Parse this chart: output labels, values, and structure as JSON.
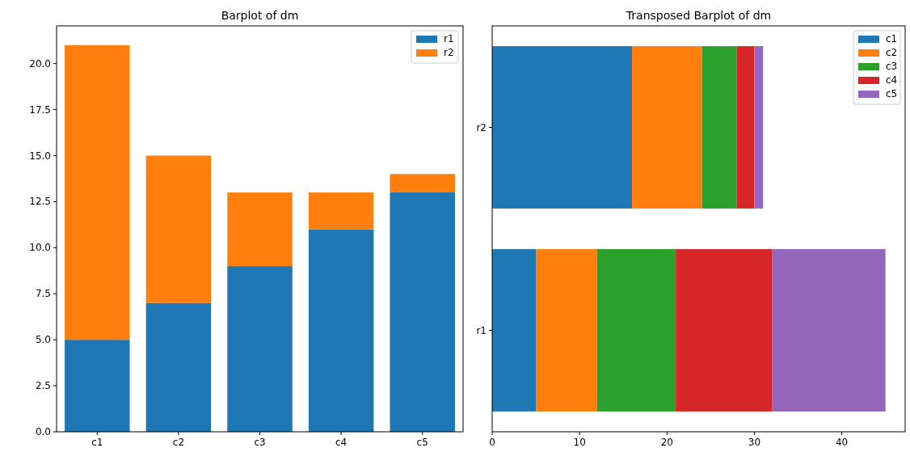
{
  "chart_data": [
    {
      "type": "bar",
      "title": "Barplot of dm",
      "categories": [
        "c1",
        "c2",
        "c3",
        "c4",
        "c5"
      ],
      "stacked": true,
      "legend": "top right",
      "ylim": [
        0,
        22.05
      ],
      "yticks": [
        {
          "value": 0,
          "label": "0.0"
        },
        {
          "value": 2.5,
          "label": "2.5"
        },
        {
          "value": 5,
          "label": "5.0"
        },
        {
          "value": 7.5,
          "label": "7.5"
        },
        {
          "value": 10,
          "label": "10.0"
        },
        {
          "value": 12.5,
          "label": "12.5"
        },
        {
          "value": 15,
          "label": "15.0"
        },
        {
          "value": 17.5,
          "label": "17.5"
        },
        {
          "value": 20,
          "label": "20.0"
        }
      ],
      "series": [
        {
          "name": "r1",
          "color": "#1f77b4",
          "values": [
            5,
            7,
            9,
            11,
            13
          ]
        },
        {
          "name": "r2",
          "color": "#ff7f0e",
          "values": [
            16,
            8,
            4,
            2,
            1
          ]
        }
      ]
    },
    {
      "type": "bar",
      "title": "Transposed Barplot of dm",
      "orientation": "horizontal",
      "categories": [
        "r2",
        "r1"
      ],
      "stacked": true,
      "legend": "top right",
      "xlim": [
        0,
        47.25
      ],
      "xticks": [
        0,
        10,
        20,
        30,
        40
      ],
      "series": [
        {
          "name": "c1",
          "color": "#1f77b4",
          "values": [
            16,
            5
          ]
        },
        {
          "name": "c2",
          "color": "#ff7f0e",
          "values": [
            8,
            7
          ]
        },
        {
          "name": "c3",
          "color": "#2ca02c",
          "values": [
            4,
            9
          ]
        },
        {
          "name": "c4",
          "color": "#d62728",
          "values": [
            2,
            11
          ]
        },
        {
          "name": "c5",
          "color": "#9467bd",
          "values": [
            1,
            13
          ]
        }
      ]
    }
  ]
}
